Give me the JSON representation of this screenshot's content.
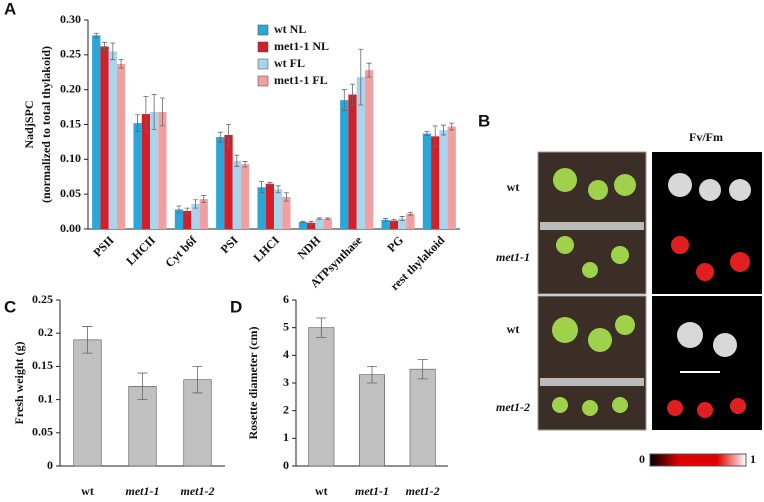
{
  "panel_labels": [
    "A",
    "B",
    "C",
    "D"
  ],
  "chart_data": [
    {
      "type": "bar",
      "ylabel": [
        "NadjSPC",
        "(normalized to total thylakoid)"
      ],
      "categories": [
        "PSII",
        "LHCII",
        "Cyt b6f",
        "PSI",
        "LHCI",
        "NDH",
        "ATPsynthase",
        "PG",
        "rest thylakoid"
      ],
      "series": [
        {
          "name": "wt NL",
          "color": "#2aa7d8",
          "values": [
            0.278,
            0.152,
            0.028,
            0.132,
            0.06,
            0.01,
            0.185,
            0.013,
            0.137
          ],
          "errors": [
            0.003,
            0.012,
            0.005,
            0.007,
            0.008,
            0.001,
            0.015,
            0.002,
            0.003
          ]
        },
        {
          "name": "met1-1 NL",
          "color": "#d2202a",
          "values": [
            0.262,
            0.165,
            0.026,
            0.135,
            0.065,
            0.009,
            0.193,
            0.012,
            0.133
          ],
          "errors": [
            0.006,
            0.025,
            0.004,
            0.015,
            0.002,
            0.002,
            0.015,
            0.002,
            0.015
          ]
        },
        {
          "name": "wt FL",
          "color": "#a9d4ec",
          "values": [
            0.255,
            0.168,
            0.036,
            0.098,
            0.057,
            0.015,
            0.218,
            0.015,
            0.142
          ],
          "errors": [
            0.012,
            0.025,
            0.006,
            0.008,
            0.005,
            0.001,
            0.04,
            0.003,
            0.007
          ]
        },
        {
          "name": "met1-1 FL",
          "color": "#f0a0a0",
          "values": [
            0.237,
            0.168,
            0.043,
            0.093,
            0.046,
            0.015,
            0.228,
            0.022,
            0.147
          ],
          "errors": [
            0.006,
            0.02,
            0.005,
            0.004,
            0.006,
            0.001,
            0.01,
            0.002,
            0.005
          ]
        }
      ],
      "ylim": [
        0,
        0.3
      ],
      "yticks": [
        {
          "value": 0,
          "label": "0.00"
        },
        {
          "value": 0.05,
          "label": "0.05"
        },
        {
          "value": 0.1,
          "label": "0.10"
        },
        {
          "value": 0.15,
          "label": "0.15"
        },
        {
          "value": 0.2,
          "label": "0.20"
        },
        {
          "value": 0.25,
          "label": "0.25"
        },
        {
          "value": 0.3,
          "label": "0.30"
        }
      ]
    },
    {
      "type": "bar",
      "ylabel": "Fresh weight (g)",
      "categories": [
        "wt",
        "met1-1",
        "met1-2"
      ],
      "series": [
        {
          "color": "#c0c0c0",
          "values": [
            0.19,
            0.12,
            0.13
          ],
          "errors": [
            0.02,
            0.02,
            0.02
          ]
        }
      ],
      "ylim": [
        0,
        0.25
      ],
      "yticks": [
        0,
        0.05,
        0.1,
        0.15,
        0.2,
        0.25
      ]
    },
    {
      "type": "bar",
      "ylabel": "Rosette diameter (cm)",
      "categories": [
        "wt",
        "met1-1",
        "met1-2"
      ],
      "series": [
        {
          "color": "#c0c0c0",
          "values": [
            5,
            3.3,
            3.5
          ],
          "errors": [
            0.35,
            0.3,
            0.35
          ]
        }
      ],
      "ylim": [
        0,
        6
      ],
      "yticks": [
        0,
        1,
        2,
        3,
        4,
        5,
        6
      ]
    }
  ],
  "panel_b": {
    "column_title": "Fv/Fm",
    "rows": [
      "wt",
      "met1-1",
      "wt",
      "met1-2"
    ],
    "colorbar": [
      "0",
      "1"
    ]
  }
}
